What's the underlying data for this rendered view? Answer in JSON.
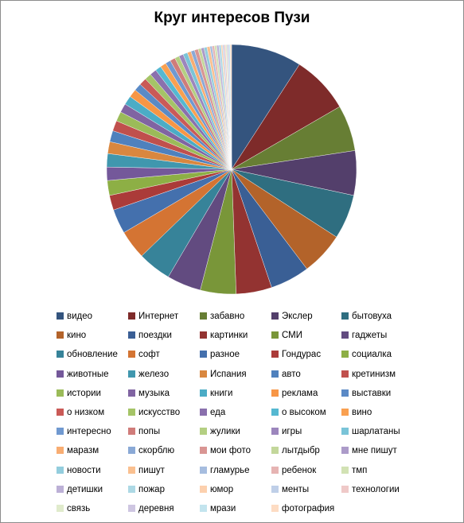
{
  "chart_data": {
    "type": "pie",
    "title": "Круг интересов Пузи",
    "legend_position": "bottom",
    "slices": [
      {
        "label": "видео",
        "value": 9.5,
        "color": "#34547e"
      },
      {
        "label": "Интернет",
        "value": 7.8,
        "color": "#7e2b2a"
      },
      {
        "label": "забавно",
        "value": 6.2,
        "color": "#677e34"
      },
      {
        "label": "Экслер",
        "value": 6.0,
        "color": "#533f6b"
      },
      {
        "label": "бытовуха",
        "value": 6.0,
        "color": "#2f6e80"
      },
      {
        "label": "кино",
        "value": 5.8,
        "color": "#b3632a"
      },
      {
        "label": "поездки",
        "value": 5.3,
        "color": "#3a5f95"
      },
      {
        "label": "картинки",
        "value": 4.8,
        "color": "#933331"
      },
      {
        "label": "СМИ",
        "value": 4.8,
        "color": "#799639"
      },
      {
        "label": "гаджеты",
        "value": 4.6,
        "color": "#624b80"
      },
      {
        "label": "обновление",
        "value": 4.5,
        "color": "#378399"
      },
      {
        "label": "софт",
        "value": 3.9,
        "color": "#d47433"
      },
      {
        "label": "разное",
        "value": 3.3,
        "color": "#4470ad"
      },
      {
        "label": "Гондурас",
        "value": 2.0,
        "color": "#ab3b39"
      },
      {
        "label": "социалка",
        "value": 2.0,
        "color": "#8daf45"
      },
      {
        "label": "животные",
        "value": 1.8,
        "color": "#74589a"
      },
      {
        "label": "железо",
        "value": 1.8,
        "color": "#4097ae"
      },
      {
        "label": "Испания",
        "value": 1.6,
        "color": "#d9873f"
      },
      {
        "label": "авто",
        "value": 1.5,
        "color": "#4f81bd"
      },
      {
        "label": "кретинизм",
        "value": 1.4,
        "color": "#c0504d"
      },
      {
        "label": "истории",
        "value": 1.3,
        "color": "#9bbb59"
      },
      {
        "label": "музыка",
        "value": 1.2,
        "color": "#8064a2"
      },
      {
        "label": "книги",
        "value": 1.2,
        "color": "#4bacc6"
      },
      {
        "label": "реклама",
        "value": 1.1,
        "color": "#f79646"
      },
      {
        "label": "выставки",
        "value": 1.0,
        "color": "#5b8ac6"
      },
      {
        "label": "о низком",
        "value": 1.0,
        "color": "#ca5a57"
      },
      {
        "label": "искусство",
        "value": 0.9,
        "color": "#a5c467"
      },
      {
        "label": "еда",
        "value": 0.9,
        "color": "#8a70ad"
      },
      {
        "label": "о высоком",
        "value": 0.8,
        "color": "#55b8d1"
      },
      {
        "label": "вино",
        "value": 0.8,
        "color": "#f9a050"
      },
      {
        "label": "интересно",
        "value": 0.7,
        "color": "#7099d0"
      },
      {
        "label": "попы",
        "value": 0.7,
        "color": "#d07c7a"
      },
      {
        "label": "жулики",
        "value": 0.6,
        "color": "#b4cf82"
      },
      {
        "label": "игры",
        "value": 0.6,
        "color": "#9c86bd"
      },
      {
        "label": "шарлатаны",
        "value": 0.6,
        "color": "#7ac4d8"
      },
      {
        "label": "маразм",
        "value": 0.5,
        "color": "#f8ad72"
      },
      {
        "label": "скорблю",
        "value": 0.5,
        "color": "#8aa9d6"
      },
      {
        "label": "мои фото",
        "value": 0.5,
        "color": "#d99593"
      },
      {
        "label": "лытдыбр",
        "value": 0.4,
        "color": "#c3d79b"
      },
      {
        "label": "мне пишут",
        "value": 0.4,
        "color": "#ac9bc9"
      },
      {
        "label": "новости",
        "value": 0.4,
        "color": "#93cddd"
      },
      {
        "label": "пишут",
        "value": 0.4,
        "color": "#fac090"
      },
      {
        "label": "гламурье",
        "value": 0.3,
        "color": "#a6bddf"
      },
      {
        "label": "ребенок",
        "value": 0.3,
        "color": "#e6b4b3"
      },
      {
        "label": "тмп",
        "value": 0.3,
        "color": "#d2e2b4"
      },
      {
        "label": "детишки",
        "value": 0.3,
        "color": "#bcb0d6"
      },
      {
        "label": "пожар",
        "value": 0.3,
        "color": "#add9e5"
      },
      {
        "label": "юмор",
        "value": 0.2,
        "color": "#fcd0ae"
      },
      {
        "label": "менты",
        "value": 0.2,
        "color": "#bfcfe8"
      },
      {
        "label": "технологии",
        "value": 0.2,
        "color": "#efc9c8"
      },
      {
        "label": "связь",
        "value": 0.2,
        "color": "#e0ebcc"
      },
      {
        "label": "деревня",
        "value": 0.2,
        "color": "#cec6e1"
      },
      {
        "label": "мрази",
        "value": 0.2,
        "color": "#c3e4ee"
      },
      {
        "label": "фотография",
        "value": 0.2,
        "color": "#fddcc3"
      }
    ]
  }
}
